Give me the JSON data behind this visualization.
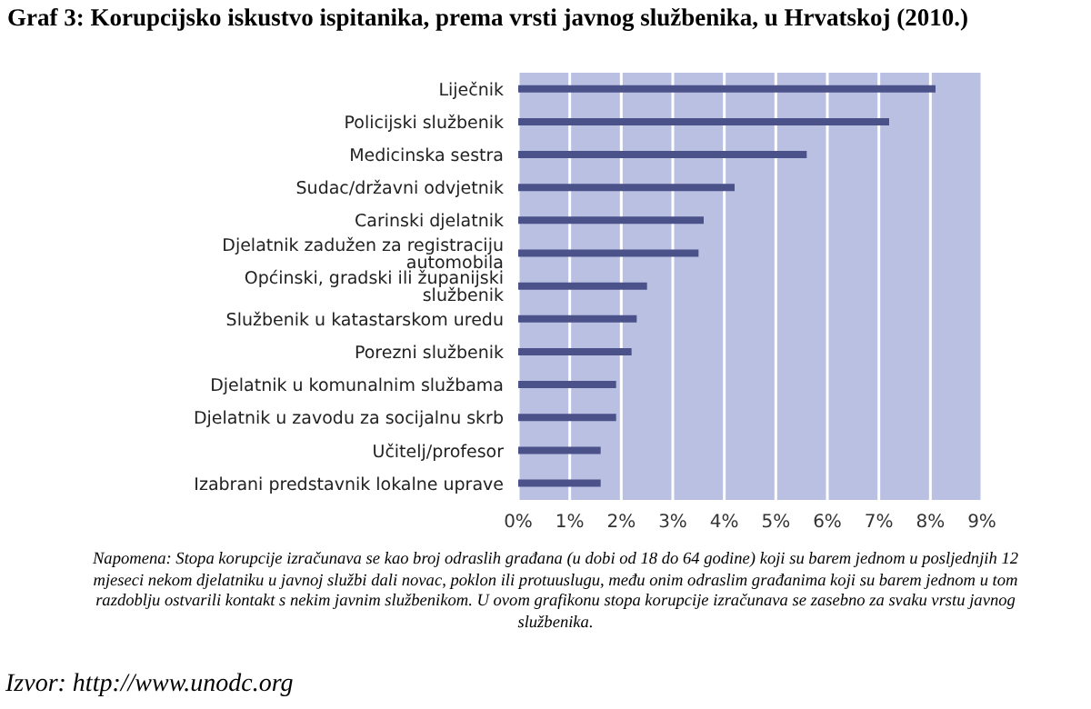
{
  "chart_data": {
    "type": "bar",
    "orientation": "horizontal",
    "title": "Graf 3: Korupcijsko iskustvo ispitanika, prema vrsti javnog službenika, u Hrvatskoj (2010.)",
    "categories": [
      "Liječnik",
      "Policijski službenik",
      "Medicinska sestra",
      "Sudac/državni odvjetnik",
      "Carinski djelatnik",
      "Djelatnik zadužen za registraciju automobila",
      "Općinski, gradski ili županijski službenik",
      "Službenik u katastarskom uredu",
      "Porezni službenik",
      "Djelatnik u komunalnim službama",
      "Djelatnik u zavodu za socijalnu skrb",
      "Učitelj/profesor",
      "Izabrani predstavnik lokalne uprave"
    ],
    "values": [
      8.1,
      7.2,
      5.6,
      4.2,
      3.6,
      3.5,
      2.5,
      2.3,
      2.2,
      1.9,
      1.9,
      1.6,
      1.6
    ],
    "color": "#4b5189",
    "xlim": [
      0,
      9
    ],
    "xticks": [
      {
        "value": 0,
        "label": "0%"
      },
      {
        "value": 1,
        "label": "1%"
      },
      {
        "value": 2,
        "label": "2%"
      },
      {
        "value": 3,
        "label": "3%"
      },
      {
        "value": 4,
        "label": "4%"
      },
      {
        "value": 5,
        "label": "5%"
      },
      {
        "value": 6,
        "label": "6%"
      },
      {
        "value": 7,
        "label": "7%"
      },
      {
        "value": 8,
        "label": "8%"
      },
      {
        "value": 9,
        "label": "9%"
      }
    ],
    "grid": "x",
    "annotations": [
      "Napomena: Stopa korupcije izračunava se kao broj odraslih građana (u dobi od 18 do 64 godine) koji su barem jednom u posljednjih 12 mjeseci nekom djelatniku u javnoj službi dali novac, poklon ili protuuslugu, među onim odraslim građanima koji su barem jednom u tom razdoblju ostvarili kontakt s nekim javnim službenikom. U ovom grafikonu stopa korupcije izračunava se zasebno za svaku vrstu javnog službenika.",
      "Izvor: http://www.unodc.org"
    ]
  }
}
